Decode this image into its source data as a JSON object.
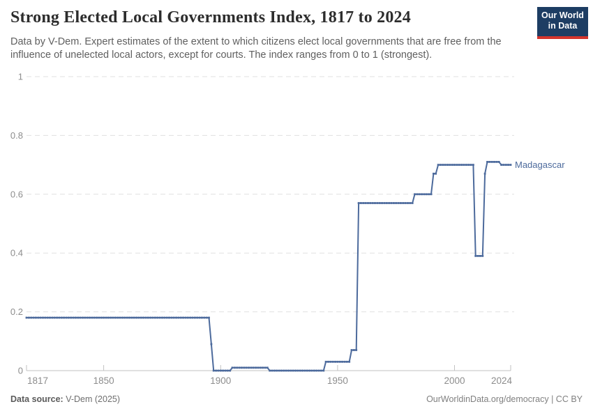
{
  "header": {
    "title": "Strong Elected Local Governments Index, 1817 to 2024",
    "subtitle": "Data by V-Dem. Expert estimates of the extent to which citizens elect local governments that are free from the influence of unelected local actors, except for courts. The index ranges from 0 to 1 (strongest)."
  },
  "logo": {
    "line1": "Our World",
    "line2": "in Data",
    "bg_color": "#1d3d63",
    "accent_color": "#d4342c"
  },
  "chart_data": {
    "type": "line",
    "title": "Strong Elected Local Governments Index, 1817 to 2024",
    "xlabel": "",
    "ylabel": "",
    "x_range": [
      1817,
      2024
    ],
    "y_range": [
      0,
      1
    ],
    "x_ticks": [
      1817,
      1850,
      1900,
      1950,
      2000,
      2024
    ],
    "y_ticks": [
      0,
      0.2,
      0.4,
      0.6,
      0.8,
      1
    ],
    "y_tick_labels": [
      "0",
      "0.2",
      "0.4",
      "0.6",
      "0.8",
      "1"
    ],
    "grid": "horizontal-dashed",
    "legend_position": "line-end-label",
    "series": [
      {
        "name": "Madagascar",
        "color": "#4c6a9c",
        "segments": [
          {
            "from": 1817,
            "to": 1895,
            "value": 0.18
          },
          {
            "from": 1896,
            "to": 1896,
            "value": 0.09
          },
          {
            "from": 1897,
            "to": 1904,
            "value": 0.0
          },
          {
            "from": 1905,
            "to": 1920,
            "value": 0.01
          },
          {
            "from": 1921,
            "to": 1944,
            "value": 0.0
          },
          {
            "from": 1945,
            "to": 1955,
            "value": 0.03
          },
          {
            "from": 1956,
            "to": 1958,
            "value": 0.07
          },
          {
            "from": 1959,
            "to": 1982,
            "value": 0.57
          },
          {
            "from": 1983,
            "to": 1990,
            "value": 0.6
          },
          {
            "from": 1991,
            "to": 1992,
            "value": 0.67
          },
          {
            "from": 1993,
            "to": 2008,
            "value": 0.7
          },
          {
            "from": 2009,
            "to": 2012,
            "value": 0.39
          },
          {
            "from": 2013,
            "to": 2013,
            "value": 0.67
          },
          {
            "from": 2014,
            "to": 2019,
            "value": 0.71
          },
          {
            "from": 2020,
            "to": 2024,
            "value": 0.7
          }
        ]
      }
    ]
  },
  "footer": {
    "source_label": "Data source:",
    "source_value": " V-Dem (2025)",
    "credit": "OurWorldinData.org/democracy | CC BY"
  }
}
